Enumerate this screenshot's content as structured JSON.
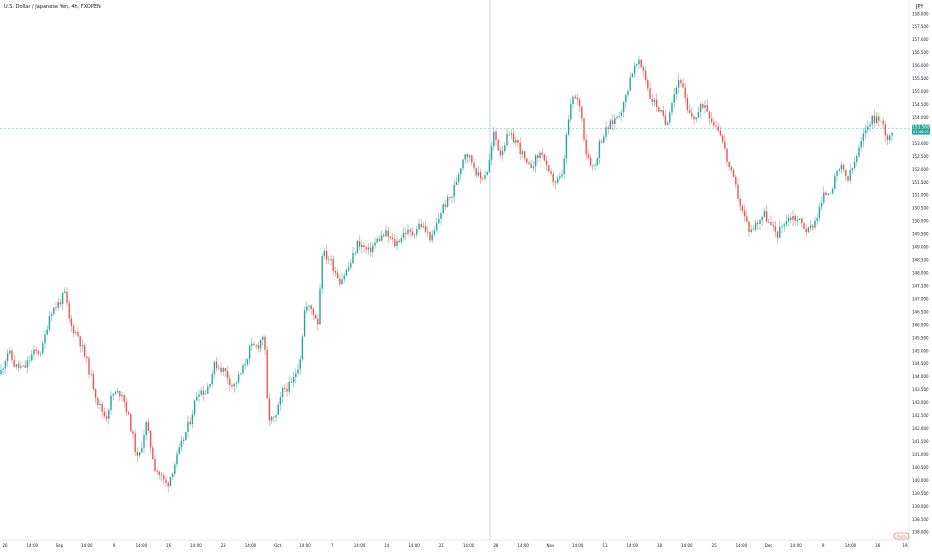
{
  "header": {
    "title": "U.S. Dollar / Japanese Yen, 4h, FXOPEN",
    "currency": "JPY"
  },
  "price_label": {
    "value": "153.568",
    "countdown": "02:48:01"
  },
  "scale_button": "Auto",
  "colors": {
    "up": "#26a69a",
    "down": "#ef5350",
    "current_line": "#26a69a",
    "crosshair": "#9db2e0",
    "axis_text": "#131722"
  },
  "chart_data": {
    "type": "candlestick",
    "symbol": "U.S. Dollar / Japanese Yen",
    "interval": "4h",
    "source": "FXOPEN",
    "ylim": [
      137.7,
      158.3
    ],
    "y_ticks": [
      "158.000",
      "157.500",
      "157.000",
      "156.500",
      "156.000",
      "155.500",
      "155.000",
      "154.500",
      "154.000",
      "153.500",
      "153.000",
      "152.500",
      "152.000",
      "151.500",
      "151.000",
      "150.500",
      "150.000",
      "149.500",
      "149.000",
      "148.500",
      "148.000",
      "147.500",
      "147.000",
      "146.500",
      "146.000",
      "145.500",
      "145.000",
      "144.500",
      "144.000",
      "143.500",
      "143.000",
      "142.500",
      "142.000",
      "141.500",
      "141.000",
      "140.500",
      "140.000",
      "139.500",
      "139.000",
      "138.500",
      "138.000"
    ],
    "x_ticks": [
      "26",
      "14:00",
      "Sep",
      "14:00",
      "9",
      "14:00",
      "16",
      "14:00",
      "23",
      "14:00",
      "Oct",
      "14:00",
      "7",
      "14:00",
      "14",
      "14:00",
      "21",
      "14:00",
      "28",
      "14:00",
      "Nov",
      "14:00",
      "11",
      "14:00",
      "18",
      "14:00",
      "25",
      "14:00",
      "Dec",
      "14:00",
      "9",
      "14:00",
      "16",
      "19"
    ],
    "price_path": [
      [
        0,
        144.1
      ],
      [
        8,
        145.0
      ],
      [
        15,
        144.4
      ],
      [
        24,
        144.3
      ],
      [
        33,
        144.9
      ],
      [
        42,
        145.0
      ],
      [
        50,
        146.5
      ],
      [
        58,
        146.8
      ],
      [
        65,
        147.2
      ],
      [
        70,
        146.0
      ],
      [
        78,
        145.6
      ],
      [
        88,
        144.4
      ],
      [
        98,
        143.0
      ],
      [
        106,
        142.4
      ],
      [
        112,
        143.3
      ],
      [
        122,
        143.4
      ],
      [
        130,
        142.2
      ],
      [
        138,
        140.7
      ],
      [
        146,
        142.2
      ],
      [
        155,
        140.5
      ],
      [
        167,
        139.8
      ],
      [
        178,
        141.0
      ],
      [
        190,
        142.3
      ],
      [
        198,
        143.5
      ],
      [
        206,
        143.4
      ],
      [
        215,
        144.5
      ],
      [
        225,
        144.2
      ],
      [
        233,
        143.6
      ],
      [
        242,
        144.2
      ],
      [
        250,
        145.1
      ],
      [
        258,
        145.2
      ],
      [
        264,
        145.7
      ],
      [
        268,
        142.4
      ],
      [
        275,
        142.3
      ],
      [
        283,
        143.5
      ],
      [
        292,
        143.7
      ],
      [
        300,
        144.7
      ],
      [
        305,
        146.7
      ],
      [
        312,
        146.6
      ],
      [
        318,
        146.1
      ],
      [
        322,
        148.8
      ],
      [
        330,
        148.5
      ],
      [
        340,
        147.7
      ],
      [
        350,
        148.3
      ],
      [
        358,
        149.2
      ],
      [
        368,
        148.8
      ],
      [
        378,
        149.3
      ],
      [
        386,
        149.5
      ],
      [
        395,
        149.1
      ],
      [
        405,
        149.6
      ],
      [
        412,
        149.5
      ],
      [
        420,
        149.9
      ],
      [
        432,
        149.3
      ],
      [
        442,
        150.5
      ],
      [
        452,
        151.0
      ],
      [
        458,
        151.8
      ],
      [
        465,
        152.7
      ],
      [
        472,
        152.3
      ],
      [
        480,
        151.6
      ],
      [
        488,
        152.0
      ],
      [
        494,
        153.4
      ],
      [
        500,
        152.6
      ],
      [
        508,
        153.3
      ],
      [
        516,
        153.1
      ],
      [
        522,
        152.6
      ],
      [
        528,
        152.0
      ],
      [
        536,
        152.4
      ],
      [
        542,
        152.7
      ],
      [
        548,
        151.8
      ],
      [
        556,
        151.5
      ],
      [
        562,
        151.7
      ],
      [
        568,
        153.8
      ],
      [
        573,
        154.8
      ],
      [
        580,
        154.5
      ],
      [
        586,
        152.7
      ],
      [
        594,
        152.0
      ],
      [
        600,
        153.1
      ],
      [
        608,
        153.6
      ],
      [
        616,
        154.0
      ],
      [
        624,
        154.5
      ],
      [
        631,
        155.7
      ],
      [
        638,
        156.1
      ],
      [
        644,
        155.8
      ],
      [
        650,
        154.8
      ],
      [
        658,
        154.4
      ],
      [
        666,
        153.7
      ],
      [
        672,
        154.7
      ],
      [
        680,
        155.6
      ],
      [
        688,
        154.1
      ],
      [
        696,
        154.0
      ],
      [
        704,
        154.6
      ],
      [
        712,
        153.9
      ],
      [
        720,
        153.5
      ],
      [
        728,
        152.2
      ],
      [
        735,
        151.4
      ],
      [
        742,
        150.4
      ],
      [
        750,
        149.6
      ],
      [
        756,
        149.9
      ],
      [
        764,
        150.3
      ],
      [
        772,
        149.7
      ],
      [
        778,
        149.5
      ],
      [
        784,
        150.0
      ],
      [
        792,
        150.2
      ],
      [
        800,
        150.0
      ],
      [
        808,
        149.6
      ],
      [
        816,
        150.1
      ],
      [
        824,
        151.0
      ],
      [
        832,
        151.3
      ],
      [
        840,
        152.1
      ],
      [
        848,
        151.6
      ],
      [
        856,
        152.4
      ],
      [
        862,
        153.1
      ],
      [
        868,
        153.8
      ],
      [
        876,
        154.0
      ],
      [
        882,
        153.8
      ],
      [
        888,
        153.2
      ],
      [
        893,
        153.57
      ]
    ]
  }
}
